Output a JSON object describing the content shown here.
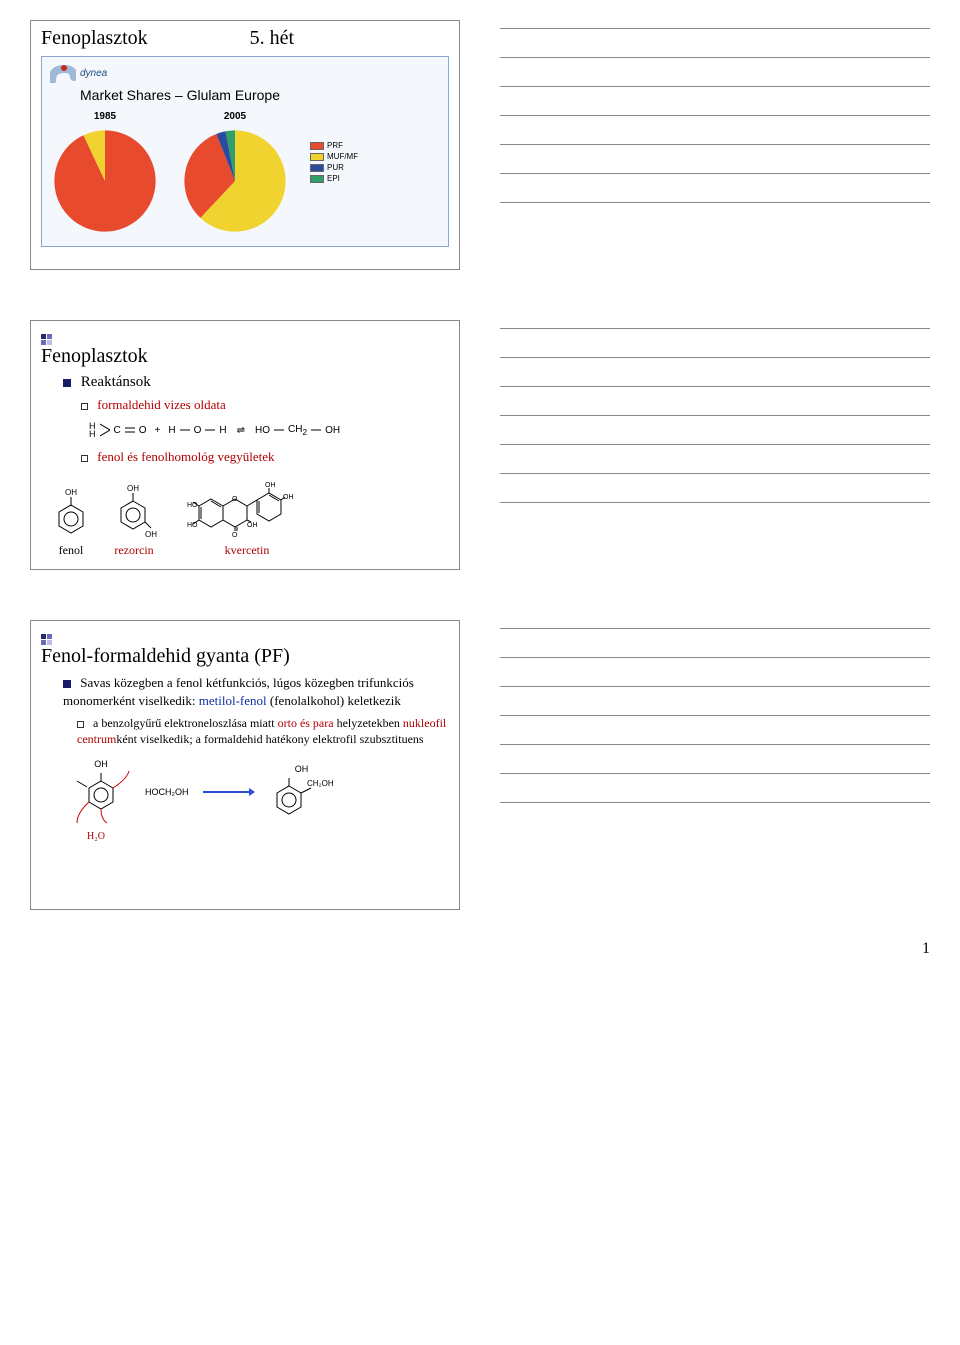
{
  "page_number": "1",
  "slide1": {
    "title_left": "Fenoplasztok",
    "title_right": "5. hét",
    "logo_text": "dynea",
    "chart_title": "Market Shares – Glulam Europe",
    "year_left": "1985",
    "year_right": "2005",
    "legend": [
      {
        "label": "PRF",
        "color": "#e84a2e"
      },
      {
        "label": "MUF/MF",
        "color": "#f0d32e"
      },
      {
        "label": "PUR",
        "color": "#2e4a9e"
      },
      {
        "label": "EPI",
        "color": "#2e9e6a"
      }
    ],
    "pie_left": {
      "slices": [
        {
          "color": "#e84a2e",
          "value": 93
        },
        {
          "color": "#f0d32e",
          "value": 7
        }
      ]
    },
    "pie_right": {
      "slices": [
        {
          "color": "#f0d32e",
          "value": 62
        },
        {
          "color": "#e84a2e",
          "value": 32
        },
        {
          "color": "#2e4a9e",
          "value": 3
        },
        {
          "color": "#2e9e6a",
          "value": 3
        }
      ]
    }
  },
  "slide2": {
    "title": "Fenoplasztok",
    "bullet1": "Reaktánsok",
    "sub1": "formaldehid vizes oldata",
    "sub2": "fenol és fenolhomológ vegyületek",
    "mol_labels": {
      "fenol": "fenol",
      "rezorcin": "rezorcin",
      "kvercetin": "kvercetin"
    },
    "formula": {
      "left_h1": "H",
      "left_h2": "H",
      "c": "C",
      "o": "O",
      "plus": "+",
      "h": "H",
      "dash_o": "O",
      "eq_arrows": "⇌",
      "ho": "HO",
      "ch2": "CH",
      "sub2": "2",
      "oh": "OH"
    }
  },
  "slide3": {
    "title": "Fenol-formaldehid gyanta (PF)",
    "bullet_text_plain1": "Savas közegben a fenol kétfunkciós, lúgos közegben trifunkciós monomerként viselkedik: ",
    "metilol": "metilol-fenol",
    "bullet_text_plain2": " (fenolalkohol) keletkezik",
    "sub_plain1": "a benzolgyűrű elektroneloszlása miatt ",
    "orto_para": "orto és para",
    "sub_plain2": " helyzetekben ",
    "nucleo": "nukleofil centrum",
    "sub_plain3": "ként viselkedik; a formaldehid hatékony elektrofil szubsztituens",
    "reaction": {
      "oh": "OH",
      "hoch2oh": "HOCH₂OH",
      "ch2oh": "CH₂OH",
      "h2o": "H₂O"
    }
  },
  "notes_line_count": 7,
  "colors": {
    "frame_border": "#888888",
    "red": "#b00000",
    "blue": "#1030a0",
    "arrow_blue": "#2a4bd6"
  }
}
